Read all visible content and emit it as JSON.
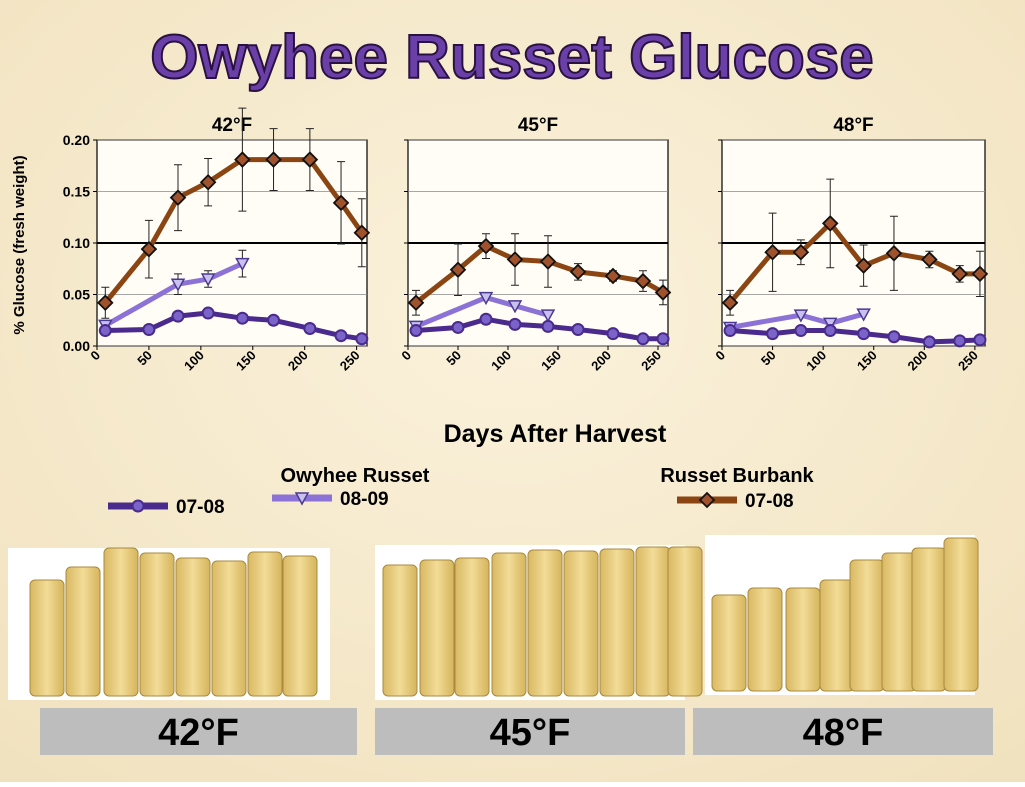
{
  "title": "Owyhee Russet Glucose",
  "y_label": "% Glucose (fresh weight)",
  "x_label": "Days After Harvest",
  "legend_groups": [
    "Owyhee Russet",
    "Russet Burbank"
  ],
  "chart_data": [
    {
      "type": "line",
      "title": "42°F",
      "xlim": [
        0,
        260
      ],
      "ylim": [
        0,
        0.2
      ],
      "xticks": [
        0,
        50,
        100,
        150,
        200,
        250
      ],
      "yticks": [
        {
          "value": 0,
          "label": "0.00"
        },
        {
          "value": 0.05,
          "label": "0.05"
        },
        {
          "value": 0.1,
          "label": "0.10"
        },
        {
          "value": 0.15,
          "label": "0.15"
        },
        {
          "value": 0.2,
          "label": "0.20"
        }
      ],
      "ytick_labels": true,
      "major_gridline": 0.1,
      "series": [
        {
          "name": "07-08",
          "group": 0,
          "color": "#4a2a8c",
          "marker": "circle",
          "x": [
            8,
            50,
            78,
            107,
            140,
            170,
            205,
            235,
            255
          ],
          "values": [
            0.015,
            0.016,
            0.029,
            0.032,
            0.027,
            0.025,
            0.017,
            0.01,
            0.007
          ]
        },
        {
          "name": "08-09",
          "group": 0,
          "color": "#8c72d6",
          "marker": "triangle",
          "x": [
            8,
            78,
            107,
            140
          ],
          "values": [
            0.02,
            0.06,
            0.065,
            0.08
          ],
          "errors": [
            0.004,
            0.01,
            0.008,
            0.013
          ]
        },
        {
          "name": "07-08",
          "group": 1,
          "color": "#8b4513",
          "marker": "diamond",
          "x": [
            8,
            50,
            78,
            107,
            140,
            170,
            205,
            235,
            255
          ],
          "values": [
            0.042,
            0.094,
            0.144,
            0.159,
            0.181,
            0.181,
            0.181,
            0.139,
            0.11
          ],
          "errors": [
            0.015,
            0.028,
            0.032,
            0.023,
            0.05,
            0.03,
            0.03,
            0.04,
            0.033
          ]
        }
      ]
    },
    {
      "type": "line",
      "title": "45°F",
      "xlim": [
        0,
        260
      ],
      "ylim": [
        0,
        0.2
      ],
      "xticks": [
        0,
        50,
        100,
        150,
        200,
        250
      ],
      "yticks": [
        0,
        0.05,
        0.1,
        0.15,
        0.2
      ],
      "ytick_labels": false,
      "major_gridline": 0.1,
      "series": [
        {
          "name": "07-08",
          "group": 0,
          "color": "#4a2a8c",
          "marker": "circle",
          "x": [
            8,
            50,
            78,
            107,
            140,
            170,
            205,
            235,
            255
          ],
          "values": [
            0.015,
            0.018,
            0.026,
            0.021,
            0.019,
            0.016,
            0.012,
            0.007,
            0.007
          ]
        },
        {
          "name": "08-09",
          "group": 0,
          "color": "#8c72d6",
          "marker": "triangle",
          "x": [
            8,
            78,
            107,
            140
          ],
          "values": [
            0.019,
            0.047,
            0.039,
            0.03
          ]
        },
        {
          "name": "07-08",
          "group": 1,
          "color": "#8b4513",
          "marker": "diamond",
          "x": [
            8,
            50,
            78,
            107,
            140,
            170,
            205,
            235,
            255
          ],
          "values": [
            0.042,
            0.074,
            0.097,
            0.084,
            0.082,
            0.072,
            0.068,
            0.063,
            0.052
          ],
          "errors": [
            0.012,
            0.025,
            0.012,
            0.025,
            0.025,
            0.008,
            0.005,
            0.01,
            0.012
          ]
        }
      ]
    },
    {
      "type": "line",
      "title": "48°F",
      "xlim": [
        0,
        260
      ],
      "ylim": [
        0,
        0.2
      ],
      "xticks": [
        0,
        50,
        100,
        150,
        200,
        250
      ],
      "yticks": [
        0,
        0.05,
        0.1,
        0.15,
        0.2
      ],
      "ytick_labels": false,
      "major_gridline": 0.1,
      "series": [
        {
          "name": "07-08",
          "group": 0,
          "color": "#4a2a8c",
          "marker": "circle",
          "x": [
            8,
            50,
            78,
            107,
            140,
            170,
            205,
            235,
            255
          ],
          "values": [
            0.015,
            0.012,
            0.015,
            0.015,
            0.012,
            0.009,
            0.004,
            0.005,
            0.006
          ]
        },
        {
          "name": "08-09",
          "group": 0,
          "color": "#8c72d6",
          "marker": "triangle",
          "x": [
            8,
            78,
            107,
            140
          ],
          "values": [
            0.018,
            0.03,
            0.022,
            0.031
          ]
        },
        {
          "name": "07-08",
          "group": 1,
          "color": "#8b4513",
          "marker": "diamond",
          "x": [
            8,
            50,
            78,
            107,
            140,
            170,
            205,
            235,
            255
          ],
          "values": [
            0.042,
            0.091,
            0.091,
            0.119,
            0.078,
            0.09,
            0.084,
            0.07,
            0.07
          ],
          "errors": [
            0.012,
            0.038,
            0.012,
            0.043,
            0.02,
            0.036,
            0.008,
            0.008,
            0.022
          ]
        }
      ]
    }
  ],
  "photo_captions": [
    "42°F",
    "45°F",
    "48°F"
  ]
}
